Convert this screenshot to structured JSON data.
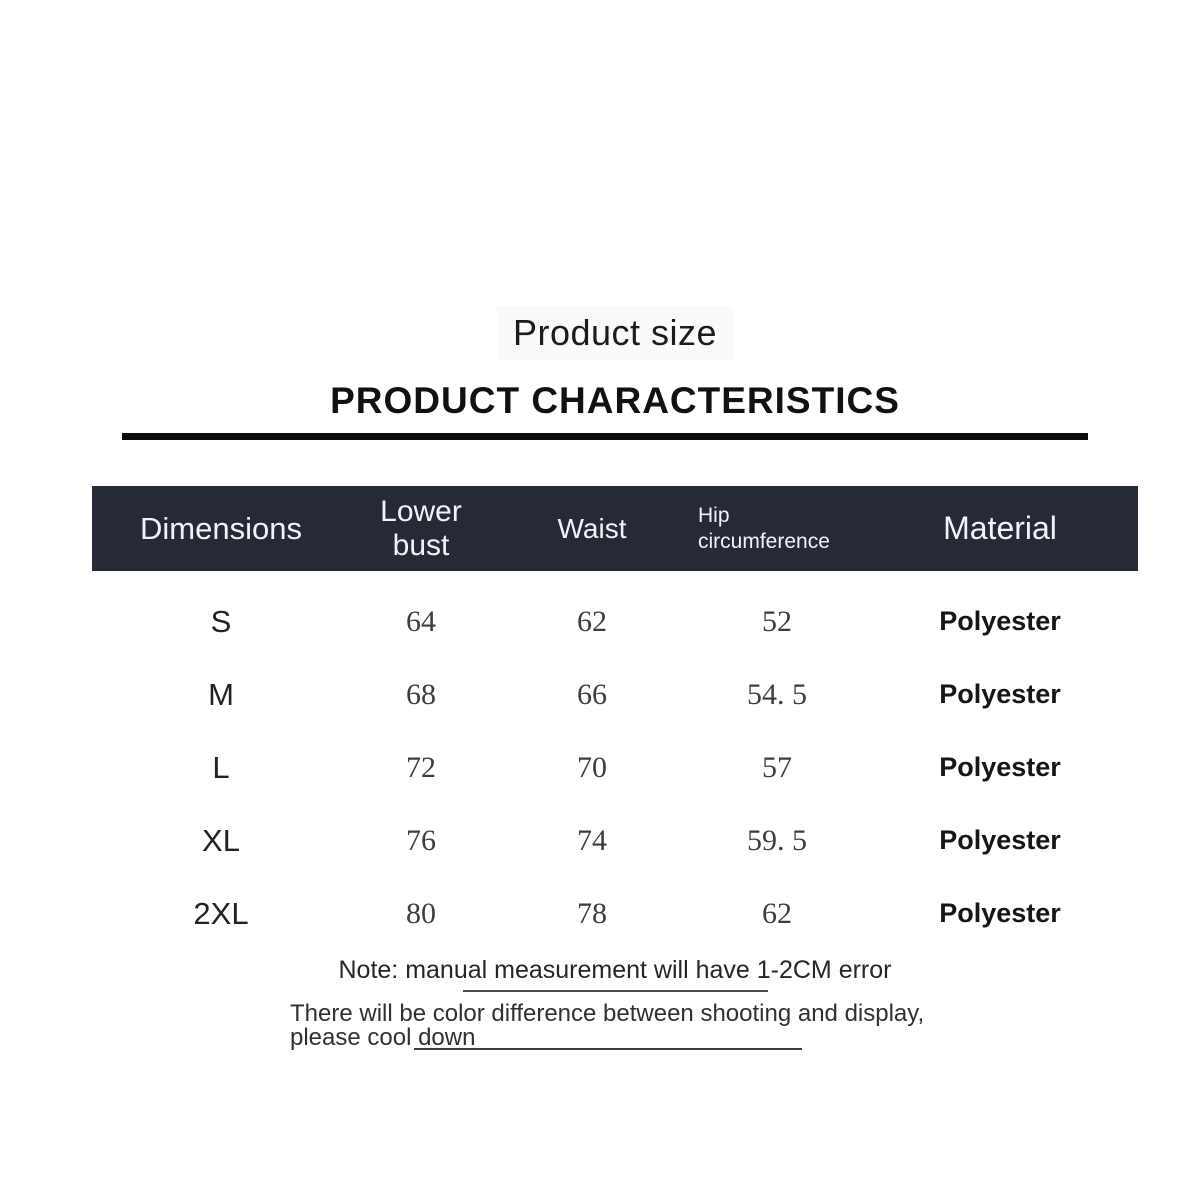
{
  "header": {
    "title": "Product size",
    "heading": "PRODUCT CHARACTERISTICS"
  },
  "table": {
    "columns": [
      "Dimensions",
      "Lower bust",
      "Waist",
      "Hip circumference",
      "Material"
    ],
    "rows": [
      [
        "S",
        "64",
        "62",
        "52",
        "Polyester"
      ],
      [
        "M",
        "68",
        "66",
        "54. 5",
        "Polyester"
      ],
      [
        "L",
        "72",
        "70",
        "57",
        "Polyester"
      ],
      [
        "XL",
        "76",
        "74",
        "59. 5",
        "Polyester"
      ],
      [
        "2XL",
        "80",
        "78",
        "62",
        "Polyester"
      ]
    ]
  },
  "notes": {
    "measurement": "Note: manual measurement will have 1-2CM error",
    "color_line1": "There will be color difference between shooting and display,",
    "color_line2": "please cool down"
  },
  "colors": {
    "header_bg": "#252a36",
    "header_text": "#f2f3f6",
    "rule": "#0a0a0a"
  }
}
